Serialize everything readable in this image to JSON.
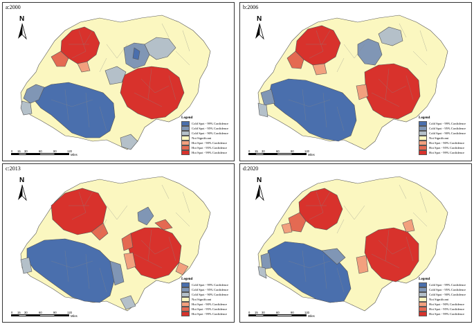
{
  "panels": [
    {
      "id": "a",
      "title": "a:2000"
    },
    {
      "id": "b",
      "title": "b:2006"
    },
    {
      "id": "c",
      "title": "c:2013"
    },
    {
      "id": "d",
      "title": "d:2020"
    }
  ],
  "north_label": "N",
  "legend": {
    "title": "Legend",
    "items": [
      {
        "label": "Cold Spot - 99% Confidence",
        "color": "#4a6fad"
      },
      {
        "label": "Cold Spot - 95% Confidence",
        "color": "#8096b5"
      },
      {
        "label": "Cold Spot - 90% Confidence",
        "color": "#b4c0c9"
      },
      {
        "label": "Not Significant",
        "color": "#fbf7c0"
      },
      {
        "label": "Hot Spot - 90% Confidence",
        "color": "#f2a07e"
      },
      {
        "label": "Hot Spot - 95% Confidence",
        "color": "#e46a52"
      },
      {
        "label": "Hot Spot - 99% Confidence",
        "color": "#d8322c"
      }
    ]
  },
  "scale": {
    "ticks": [
      "0",
      "15",
      "30",
      "60",
      "90",
      "120"
    ],
    "unit": "Miles"
  },
  "colors": {
    "cold99": "#4a6fad",
    "cold95": "#8096b5",
    "cold90": "#b4c0c9",
    "ns": "#fbf7c0",
    "hot90": "#f2a07e",
    "hot95": "#e46a52",
    "hot99": "#d8322c"
  }
}
